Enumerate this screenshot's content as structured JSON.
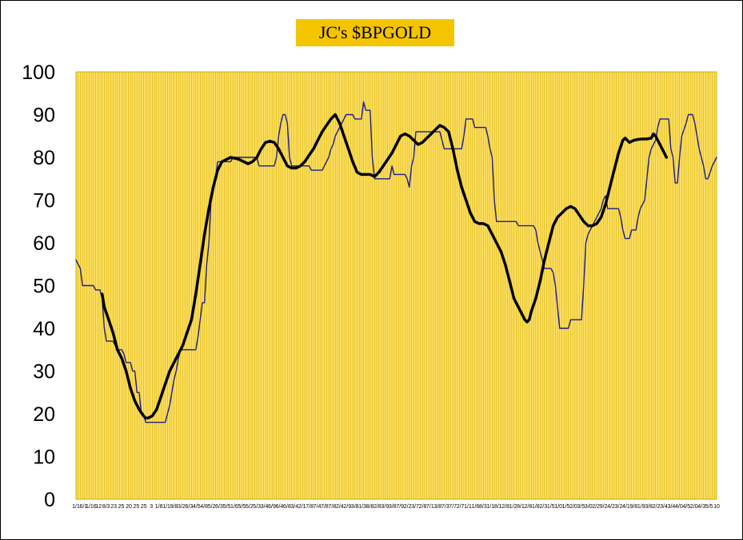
{
  "chart_data": {
    "type": "line",
    "title": "JC's $BPGOLD",
    "ylim": [
      0,
      100
    ],
    "y_ticks": [
      0,
      10,
      20,
      30,
      40,
      50,
      60,
      70,
      80,
      90,
      100
    ],
    "x_tick_labels": [
      "1/1",
      "6/1",
      "1/16",
      "12",
      "8/3",
      "23",
      "25",
      "20",
      "25",
      "25",
      "3",
      "1/8",
      "1/1",
      "9/8",
      "3/2",
      "6/3",
      "4/5",
      "4/8",
      "5/2",
      "6/3",
      "5/5",
      "1/6",
      "5/5",
      "5/2",
      "5/3",
      "3/4",
      "6/9",
      "6/4",
      "6/8",
      "3/4",
      "2/1",
      "7/8",
      "7/4",
      "7/8",
      "7/8",
      "2/4",
      "2/9",
      "3/8",
      "1/3",
      "8/8",
      "2/8",
      "3/9",
      "3/8",
      "7/9",
      "2/2",
      "3/7",
      "2/8",
      "7/1",
      "3/8",
      "7/3",
      "7/7",
      "2/7",
      "1/1",
      "1/6",
      "8/3",
      "1/1",
      "8/1",
      "2/8",
      "1/2",
      "8/1",
      "2/8",
      "1/8",
      "2/3",
      "1/5",
      "1/0",
      "1/5",
      "2/0",
      "3/5",
      "3/0",
      "2/2",
      "9/2",
      "4/2",
      "3/2",
      "4/1",
      "9/8",
      "1/9",
      "3/8",
      "2/2",
      "3/4",
      "3/4",
      "4/0",
      "4/5",
      "2/0",
      "4/3",
      "5/5",
      "10"
    ],
    "grid": "vertical",
    "colors": {
      "plot_bg": "#ffe063",
      "grid": "#d2b006",
      "plot_border": "#c8b400",
      "title_bg": "#f5c400",
      "series_raw": "#1c1c8a",
      "series_avg": "#000000"
    },
    "series": [
      {
        "values": [
          [
            0,
            56
          ],
          [
            1,
            55
          ],
          [
            2,
            54
          ],
          [
            3,
            50
          ],
          [
            8,
            50
          ],
          [
            9,
            49
          ],
          [
            11,
            49
          ],
          [
            12,
            47
          ],
          [
            13,
            40
          ],
          [
            14,
            37
          ],
          [
            17,
            37
          ],
          [
            18,
            36
          ],
          [
            19,
            35
          ],
          [
            21,
            35
          ],
          [
            22,
            34
          ],
          [
            23,
            32
          ],
          [
            25,
            32
          ],
          [
            26,
            30
          ],
          [
            27,
            30
          ],
          [
            28,
            25
          ],
          [
            29,
            25
          ],
          [
            30,
            20
          ],
          [
            31,
            20
          ],
          [
            32,
            18
          ],
          [
            41,
            18
          ],
          [
            42,
            20
          ],
          [
            43,
            22
          ],
          [
            44,
            25
          ],
          [
            45,
            28
          ],
          [
            46,
            30
          ],
          [
            47,
            33
          ],
          [
            48,
            35
          ],
          [
            55,
            35
          ],
          [
            56,
            38
          ],
          [
            57,
            42
          ],
          [
            58,
            46
          ],
          [
            59,
            46
          ],
          [
            60,
            55
          ],
          [
            61,
            60
          ],
          [
            62,
            70
          ],
          [
            63,
            72
          ],
          [
            64,
            75
          ],
          [
            65,
            79
          ],
          [
            71,
            79
          ],
          [
            72,
            80
          ],
          [
            83,
            80
          ],
          [
            84,
            78
          ],
          [
            91,
            78
          ],
          [
            92,
            80
          ],
          [
            93,
            85
          ],
          [
            94,
            88
          ],
          [
            95,
            90
          ],
          [
            96,
            90
          ],
          [
            97,
            88
          ],
          [
            98,
            80
          ],
          [
            99,
            78
          ],
          [
            107,
            78
          ],
          [
            108,
            77
          ],
          [
            113,
            77
          ],
          [
            114,
            78
          ],
          [
            116,
            80
          ],
          [
            117,
            82
          ],
          [
            118,
            83
          ],
          [
            119,
            85
          ],
          [
            120,
            86
          ],
          [
            122,
            88
          ],
          [
            124,
            90
          ],
          [
            127,
            90
          ],
          [
            128,
            89
          ],
          [
            131,
            89
          ],
          [
            132,
            93
          ],
          [
            133,
            91
          ],
          [
            135,
            91
          ],
          [
            136,
            80
          ],
          [
            137,
            75
          ],
          [
            144,
            75
          ],
          [
            145,
            78
          ],
          [
            146,
            76
          ],
          [
            151,
            76
          ],
          [
            152,
            75
          ],
          [
            153,
            73
          ],
          [
            154,
            78
          ],
          [
            155,
            80
          ],
          [
            156,
            86
          ],
          [
            167,
            86
          ],
          [
            168,
            84
          ],
          [
            169,
            82
          ],
          [
            177,
            82
          ],
          [
            178,
            85
          ],
          [
            179,
            89
          ],
          [
            182,
            89
          ],
          [
            183,
            87
          ],
          [
            188,
            87
          ],
          [
            189,
            85
          ],
          [
            190,
            82
          ],
          [
            191,
            80
          ],
          [
            192,
            70
          ],
          [
            193,
            65
          ],
          [
            202,
            65
          ],
          [
            203,
            64
          ],
          [
            210,
            64
          ],
          [
            211,
            63
          ],
          [
            212,
            60
          ],
          [
            213,
            58
          ],
          [
            214,
            56
          ],
          [
            215,
            54
          ],
          [
            218,
            54
          ],
          [
            219,
            53
          ],
          [
            220,
            50
          ],
          [
            221,
            45
          ],
          [
            222,
            40
          ],
          [
            226,
            40
          ],
          [
            227,
            42
          ],
          [
            232,
            42
          ],
          [
            233,
            50
          ],
          [
            234,
            60
          ],
          [
            235,
            62
          ],
          [
            236,
            63
          ],
          [
            238,
            65
          ],
          [
            239,
            66
          ],
          [
            241,
            68
          ],
          [
            242,
            70
          ],
          [
            243,
            71
          ],
          [
            244,
            68
          ],
          [
            249,
            68
          ],
          [
            250,
            66
          ],
          [
            251,
            63
          ],
          [
            252,
            61
          ],
          [
            254,
            61
          ],
          [
            255,
            63
          ],
          [
            257,
            63
          ],
          [
            258,
            66
          ],
          [
            259,
            68
          ],
          [
            261,
            70
          ],
          [
            262,
            75
          ],
          [
            263,
            80
          ],
          [
            264,
            82
          ],
          [
            266,
            84
          ],
          [
            267,
            87
          ],
          [
            268,
            89
          ],
          [
            272,
            89
          ],
          [
            273,
            82
          ],
          [
            274,
            80
          ],
          [
            275,
            74
          ],
          [
            276,
            74
          ],
          [
            277,
            80
          ],
          [
            278,
            85
          ],
          [
            280,
            88
          ],
          [
            281,
            90
          ],
          [
            283,
            90
          ],
          [
            284,
            88
          ],
          [
            285,
            85
          ],
          [
            286,
            82
          ],
          [
            287,
            80
          ],
          [
            288,
            78
          ],
          [
            289,
            75
          ],
          [
            290,
            75
          ],
          [
            292,
            78
          ],
          [
            294,
            80
          ]
        ]
      },
      {
        "values": [
          [
            12,
            48
          ],
          [
            13,
            45
          ],
          [
            15,
            42
          ],
          [
            17,
            39
          ],
          [
            19,
            35
          ],
          [
            21,
            33
          ],
          [
            23,
            30
          ],
          [
            25,
            26
          ],
          [
            27,
            23
          ],
          [
            29,
            21
          ],
          [
            31,
            19.5
          ],
          [
            32,
            19
          ],
          [
            33,
            19
          ],
          [
            35,
            19.5
          ],
          [
            37,
            21
          ],
          [
            39,
            24
          ],
          [
            41,
            27
          ],
          [
            43,
            30
          ],
          [
            45,
            32
          ],
          [
            47,
            34
          ],
          [
            49,
            36
          ],
          [
            51,
            39
          ],
          [
            53,
            42
          ],
          [
            55,
            48
          ],
          [
            57,
            55
          ],
          [
            59,
            62
          ],
          [
            61,
            68
          ],
          [
            63,
            73
          ],
          [
            65,
            77
          ],
          [
            67,
            79
          ],
          [
            69,
            79.5
          ],
          [
            71,
            80
          ],
          [
            73,
            79.8
          ],
          [
            75,
            79.5
          ],
          [
            77,
            79
          ],
          [
            79,
            78.5
          ],
          [
            81,
            79
          ],
          [
            83,
            80
          ],
          [
            85,
            82
          ],
          [
            87,
            83.5
          ],
          [
            89,
            83.8
          ],
          [
            91,
            83.5
          ],
          [
            93,
            82
          ],
          [
            95,
            80
          ],
          [
            97,
            78
          ],
          [
            99,
            77.5
          ],
          [
            101,
            77.5
          ],
          [
            103,
            78
          ],
          [
            105,
            79
          ],
          [
            107,
            80.5
          ],
          [
            109,
            82
          ],
          [
            111,
            84
          ],
          [
            113,
            86
          ],
          [
            115,
            87.5
          ],
          [
            117,
            89
          ],
          [
            119,
            90
          ],
          [
            121,
            88
          ],
          [
            123,
            85
          ],
          [
            125,
            82
          ],
          [
            127,
            79
          ],
          [
            129,
            76.5
          ],
          [
            131,
            76
          ],
          [
            133,
            76
          ],
          [
            135,
            76
          ],
          [
            137,
            75.5
          ],
          [
            139,
            76.5
          ],
          [
            141,
            78
          ],
          [
            143,
            79.5
          ],
          [
            145,
            81
          ],
          [
            147,
            83
          ],
          [
            149,
            85
          ],
          [
            151,
            85.5
          ],
          [
            153,
            85
          ],
          [
            155,
            84
          ],
          [
            157,
            83
          ],
          [
            159,
            83.5
          ],
          [
            161,
            84.5
          ],
          [
            163,
            85.5
          ],
          [
            165,
            86.5
          ],
          [
            167,
            87.5
          ],
          [
            169,
            87
          ],
          [
            171,
            86
          ],
          [
            173,
            82
          ],
          [
            175,
            77
          ],
          [
            177,
            73
          ],
          [
            179,
            70
          ],
          [
            181,
            67
          ],
          [
            183,
            65
          ],
          [
            185,
            64.5
          ],
          [
            187,
            64.5
          ],
          [
            189,
            64
          ],
          [
            191,
            62
          ],
          [
            193,
            60
          ],
          [
            195,
            58
          ],
          [
            197,
            55
          ],
          [
            199,
            51
          ],
          [
            201,
            47
          ],
          [
            203,
            45
          ],
          [
            205,
            43
          ],
          [
            206,
            42
          ],
          [
            207,
            41.5
          ],
          [
            208,
            42
          ],
          [
            209,
            44
          ],
          [
            211,
            47
          ],
          [
            213,
            51
          ],
          [
            215,
            56
          ],
          [
            217,
            60
          ],
          [
            219,
            64
          ],
          [
            221,
            66
          ],
          [
            223,
            67
          ],
          [
            225,
            68
          ],
          [
            227,
            68.5
          ],
          [
            229,
            68
          ],
          [
            231,
            66.5
          ],
          [
            233,
            65
          ],
          [
            235,
            64
          ],
          [
            237,
            64
          ],
          [
            239,
            64.5
          ],
          [
            241,
            66
          ],
          [
            243,
            69
          ],
          [
            245,
            73
          ],
          [
            247,
            77
          ],
          [
            249,
            81
          ],
          [
            251,
            84
          ],
          [
            252,
            84.5
          ],
          [
            254,
            83.5
          ],
          [
            256,
            84
          ],
          [
            258,
            84.2
          ],
          [
            260,
            84.3
          ],
          [
            262,
            84.3
          ],
          [
            264,
            84.5
          ],
          [
            265,
            85.5
          ],
          [
            266,
            85
          ],
          [
            268,
            83
          ],
          [
            270,
            81
          ],
          [
            271,
            80
          ]
        ]
      }
    ]
  }
}
